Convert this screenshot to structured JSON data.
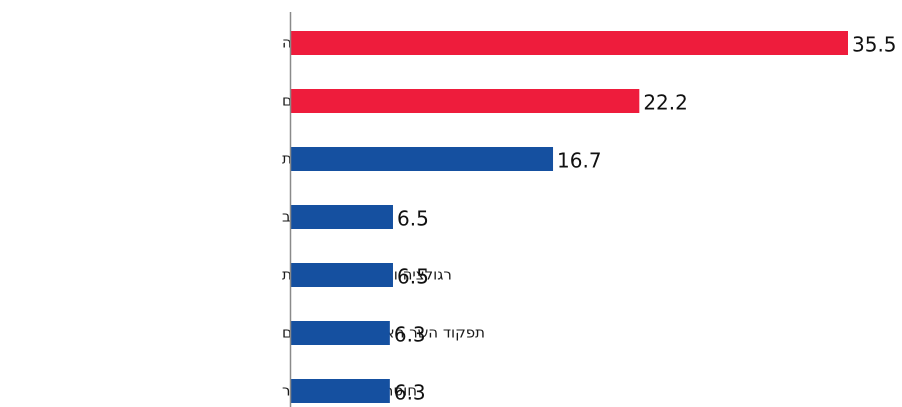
{
  "chart_data": {
    "type": "bar",
    "orientation": "horizontal",
    "categories": [
      "חוסר אכפתיות של ההנהגה",
      "סדרי עדיפויות לא טובים",
      "קושי אמיתי בפתרון הבעיות",
      "חוסר תקציב",
      "רגולציה ובירוקרטיה חונקת",
      "תפקוד השר האחראי על התחום",
      "חוסר עניין של הציבור"
    ],
    "values": [
      35.5,
      22.2,
      16.7,
      6.5,
      6.5,
      6.3,
      6.3
    ],
    "value_labels": [
      "35.5",
      "22.2",
      "16.7",
      "6.5",
      "6.5",
      "6.3",
      "6.3"
    ],
    "bar_colors": [
      "#ee1c3c",
      "#ee1c3c",
      "#1550a0",
      "#1550a0",
      "#1550a0",
      "#1550a0",
      "#1550a0"
    ],
    "xlim": [
      0,
      35.5
    ],
    "grid": false,
    "legend": "none"
  }
}
